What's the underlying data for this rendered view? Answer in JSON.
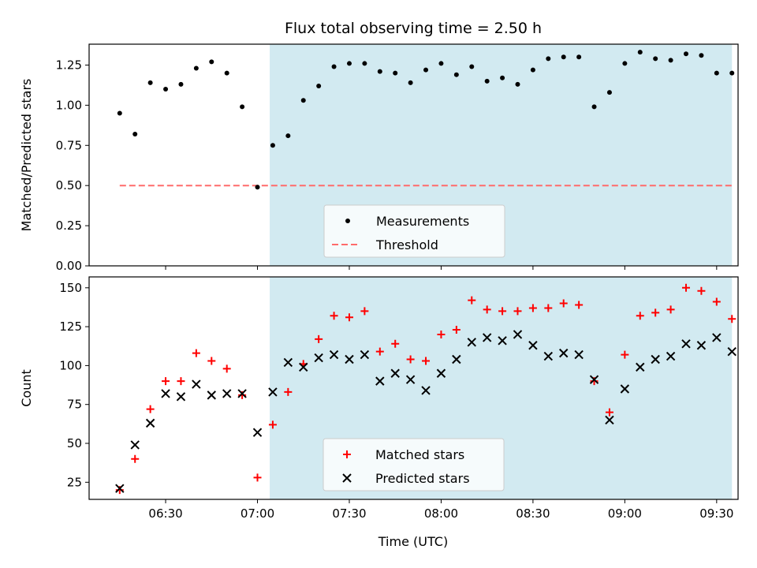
{
  "figure": {
    "title": "Flux total observing time = 2.50 h",
    "xlabel": "Time (UTC)"
  },
  "colors": {
    "shade": "#add8e6",
    "measurement": "#000000",
    "threshold": "#ff6b6b",
    "matched": "#ff0000",
    "predicted": "#000000"
  },
  "chart_data": [
    {
      "type": "scatter",
      "ylabel": "Matched/Predicted stars",
      "xlim": [
        "06:05",
        "09:37"
      ],
      "ylim": [
        0,
        1.38
      ],
      "yticks": [
        0,
        0.25,
        0.5,
        0.75,
        1.0,
        1.25
      ],
      "ytick_labels": [
        "0.00",
        "0.25",
        "0.50",
        "0.75",
        "1.00",
        "1.25"
      ],
      "shaded_interval": [
        "07:04",
        "09:35"
      ],
      "legend_position": "lower center",
      "threshold": {
        "name": "Threshold",
        "y": 0.5,
        "x_range": [
          "06:15",
          "09:35"
        ],
        "style": "dashed"
      },
      "series": [
        {
          "name": "Measurements",
          "x": [
            "06:15",
            "06:20",
            "06:25",
            "06:30",
            "06:35",
            "06:40",
            "06:45",
            "06:50",
            "06:55",
            "07:00",
            "07:05",
            "07:10",
            "07:15",
            "07:20",
            "07:25",
            "07:30",
            "07:35",
            "07:40",
            "07:45",
            "07:50",
            "07:55",
            "08:00",
            "08:05",
            "08:10",
            "08:15",
            "08:20",
            "08:25",
            "08:30",
            "08:35",
            "08:40",
            "08:45",
            "08:50",
            "08:55",
            "09:00",
            "09:05",
            "09:10",
            "09:15",
            "09:20",
            "09:25",
            "09:30",
            "09:35"
          ],
          "y": [
            0.95,
            0.82,
            1.14,
            1.1,
            1.13,
            1.23,
            1.27,
            1.2,
            0.99,
            0.49,
            0.75,
            0.81,
            1.03,
            1.12,
            1.24,
            1.26,
            1.26,
            1.21,
            1.2,
            1.14,
            1.22,
            1.26,
            1.19,
            1.24,
            1.15,
            1.17,
            1.13,
            1.22,
            1.29,
            1.3,
            1.3,
            0.99,
            1.08,
            1.26,
            1.33,
            1.29,
            1.28,
            1.32,
            1.31,
            1.2,
            1.2
          ]
        }
      ]
    },
    {
      "type": "scatter",
      "ylabel": "Count",
      "xlim": [
        "06:05",
        "09:37"
      ],
      "ylim": [
        14,
        157
      ],
      "yticks": [
        25,
        50,
        75,
        100,
        125,
        150
      ],
      "ytick_labels": [
        "25",
        "50",
        "75",
        "100",
        "125",
        "150"
      ],
      "xticks": [
        "06:30",
        "07:00",
        "07:30",
        "08:00",
        "08:30",
        "09:00",
        "09:30"
      ],
      "shaded_interval": [
        "07:04",
        "09:35"
      ],
      "legend_position": "lower center",
      "series": [
        {
          "name": "Matched stars",
          "marker": "plus",
          "x": [
            "06:15",
            "06:20",
            "06:25",
            "06:30",
            "06:35",
            "06:40",
            "06:45",
            "06:50",
            "06:55",
            "07:00",
            "07:05",
            "07:10",
            "07:15",
            "07:20",
            "07:25",
            "07:30",
            "07:35",
            "07:40",
            "07:45",
            "07:50",
            "07:55",
            "08:00",
            "08:05",
            "08:10",
            "08:15",
            "08:20",
            "08:25",
            "08:30",
            "08:35",
            "08:40",
            "08:45",
            "08:50",
            "08:55",
            "09:00",
            "09:05",
            "09:10",
            "09:15",
            "09:20",
            "09:25",
            "09:30",
            "09:35"
          ],
          "y": [
            20,
            40,
            72,
            90,
            90,
            108,
            103,
            98,
            81,
            28,
            62,
            83,
            101,
            117,
            132,
            131,
            135,
            109,
            114,
            104,
            103,
            120,
            123,
            142,
            136,
            135,
            135,
            137,
            137,
            140,
            139,
            90,
            70,
            107,
            132,
            134,
            136,
            150,
            148,
            141,
            130
          ]
        },
        {
          "name": "Predicted stars",
          "marker": "x",
          "x": [
            "06:15",
            "06:20",
            "06:25",
            "06:30",
            "06:35",
            "06:40",
            "06:45",
            "06:50",
            "06:55",
            "07:00",
            "07:05",
            "07:10",
            "07:15",
            "07:20",
            "07:25",
            "07:30",
            "07:35",
            "07:40",
            "07:45",
            "07:50",
            "07:55",
            "08:00",
            "08:05",
            "08:10",
            "08:15",
            "08:20",
            "08:25",
            "08:30",
            "08:35",
            "08:40",
            "08:45",
            "08:50",
            "08:55",
            "09:00",
            "09:05",
            "09:10",
            "09:15",
            "09:20",
            "09:25",
            "09:30",
            "09:35"
          ],
          "y": [
            21,
            49,
            63,
            82,
            80,
            88,
            81,
            82,
            82,
            57,
            83,
            102,
            99,
            105,
            107,
            104,
            107,
            90,
            95,
            91,
            84,
            95,
            104,
            115,
            118,
            116,
            120,
            113,
            106,
            108,
            107,
            91,
            65,
            85,
            99,
            104,
            106,
            114,
            113,
            118,
            109
          ]
        }
      ]
    }
  ]
}
